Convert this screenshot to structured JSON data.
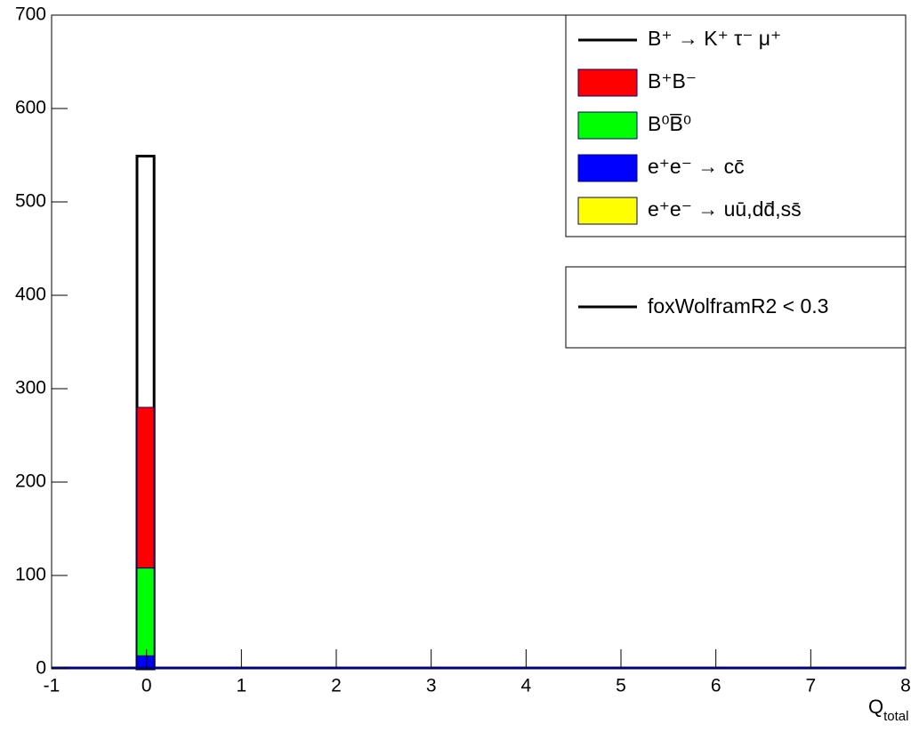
{
  "chart_data": {
    "type": "stacked_histogram",
    "bins": [
      -0.1,
      0.08
    ],
    "series": [
      {
        "name": "e⁺e⁻ → uū,dd̄,ss̄",
        "color": "#ffff00",
        "values": [
          2
        ]
      },
      {
        "name": "e⁺e⁻ → cc̄",
        "color": "#0000ff",
        "values": [
          12
        ]
      },
      {
        "name": "B⁰B̅⁰",
        "color": "#00ff00",
        "values": [
          94
        ]
      },
      {
        "name": "B⁺B⁻",
        "color": "#ff0000",
        "values": [
          172
        ]
      }
    ],
    "signal": {
      "name": "B⁺ → K⁺ τ⁻ μ⁺",
      "color": "#000000",
      "values": [
        549
      ]
    },
    "selection_label": "foxWolframR2 < 0.3",
    "x_label": "Q",
    "x_label_sub": "total",
    "xlim": [
      -1,
      8
    ],
    "xticks": [
      -1,
      0,
      1,
      2,
      3,
      4,
      5,
      6,
      7,
      8
    ],
    "ylim": [
      0,
      700
    ],
    "yticks": [
      0,
      100,
      200,
      300,
      400,
      500,
      600,
      700
    ]
  }
}
